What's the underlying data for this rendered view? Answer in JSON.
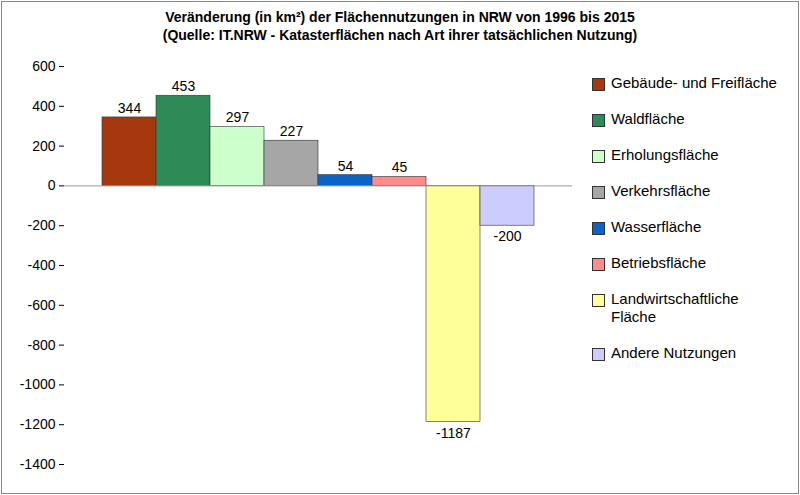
{
  "chart_data": {
    "type": "bar",
    "title": "Veränderung (in km²) der Flächennutzungen in NRW von 1996 bis 2015",
    "subtitle": "(Quelle: IT.NRW - Katasterflächen nach Art ihrer tatsächlichen Nutzung)",
    "categories": [
      "Gebäude- und Freifläche",
      "Waldfläche",
      "Erholungsfläche",
      "Verkehrsfläche",
      "Wasserfläche",
      "Betriebsfläche",
      "Landwirtschaftliche Fläche",
      "Andere Nutzungen"
    ],
    "values": [
      344,
      453,
      297,
      227,
      54,
      45,
      -1187,
      -200
    ],
    "colors": [
      "#a5380f",
      "#2e8b57",
      "#ccffcc",
      "#a6a6a6",
      "#0a64c8",
      "#ff8c8c",
      "#ffff99",
      "#ccccff"
    ],
    "ylim": [
      -1400,
      600
    ],
    "yticks": [
      -1400,
      -1200,
      -1000,
      -800,
      -600,
      -400,
      -200,
      0,
      200,
      400,
      600
    ],
    "data_labels": true,
    "tick_labels": "y",
    "legend": "right"
  }
}
